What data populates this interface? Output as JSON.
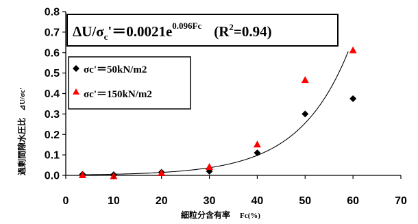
{
  "chart_data": {
    "type": "scatter",
    "x_ticks": [
      "0",
      "10",
      "20",
      "30",
      "40",
      "50",
      "60",
      "70"
    ],
    "y_ticks": [
      "0.0",
      "0.1",
      "0.2",
      "0.3",
      "0.4",
      "0.5",
      "0.6",
      "0.7",
      "0.8"
    ],
    "xlim": [
      0,
      70
    ],
    "ylim": [
      0,
      0.8
    ],
    "xlabel": "細粒分含有率",
    "xlabel_unit": "Fc(%)",
    "ylabel": "過剰間隙水圧比",
    "ylabel_symbol": "⊿U/σc'",
    "grid": false,
    "legend_position": "top-left",
    "series": [
      {
        "name": "σc'＝50kN/m2",
        "marker": "diamond",
        "color": "#000000",
        "points": [
          [
            3.5,
            0.005
          ],
          [
            10,
            0.003
          ],
          [
            20,
            0.015
          ],
          [
            30,
            0.02
          ],
          [
            40,
            0.11
          ],
          [
            50,
            0.3
          ],
          [
            60,
            0.375
          ]
        ]
      },
      {
        "name": "σc'＝150kN/m2",
        "marker": "triangle",
        "color": "#ff0000",
        "points": [
          [
            3.5,
            0.0
          ],
          [
            10,
            -0.005
          ],
          [
            20,
            0.01
          ],
          [
            30,
            0.04
          ],
          [
            40,
            0.15
          ],
          [
            50,
            0.465
          ],
          [
            60,
            0.61
          ]
        ]
      }
    ],
    "fit_curve": {
      "type": "exponential",
      "a": 0.0021,
      "b": 0.096,
      "x_range": [
        3,
        59
      ]
    },
    "annotation": {
      "delta_u": "ΔU/σ",
      "sub_c": "c",
      "prime_eq": "'＝0.0021e",
      "exponent": "0.096Fc",
      "r_open": "(R",
      "r_sq": "2",
      "r_val": "=0.94)"
    }
  }
}
